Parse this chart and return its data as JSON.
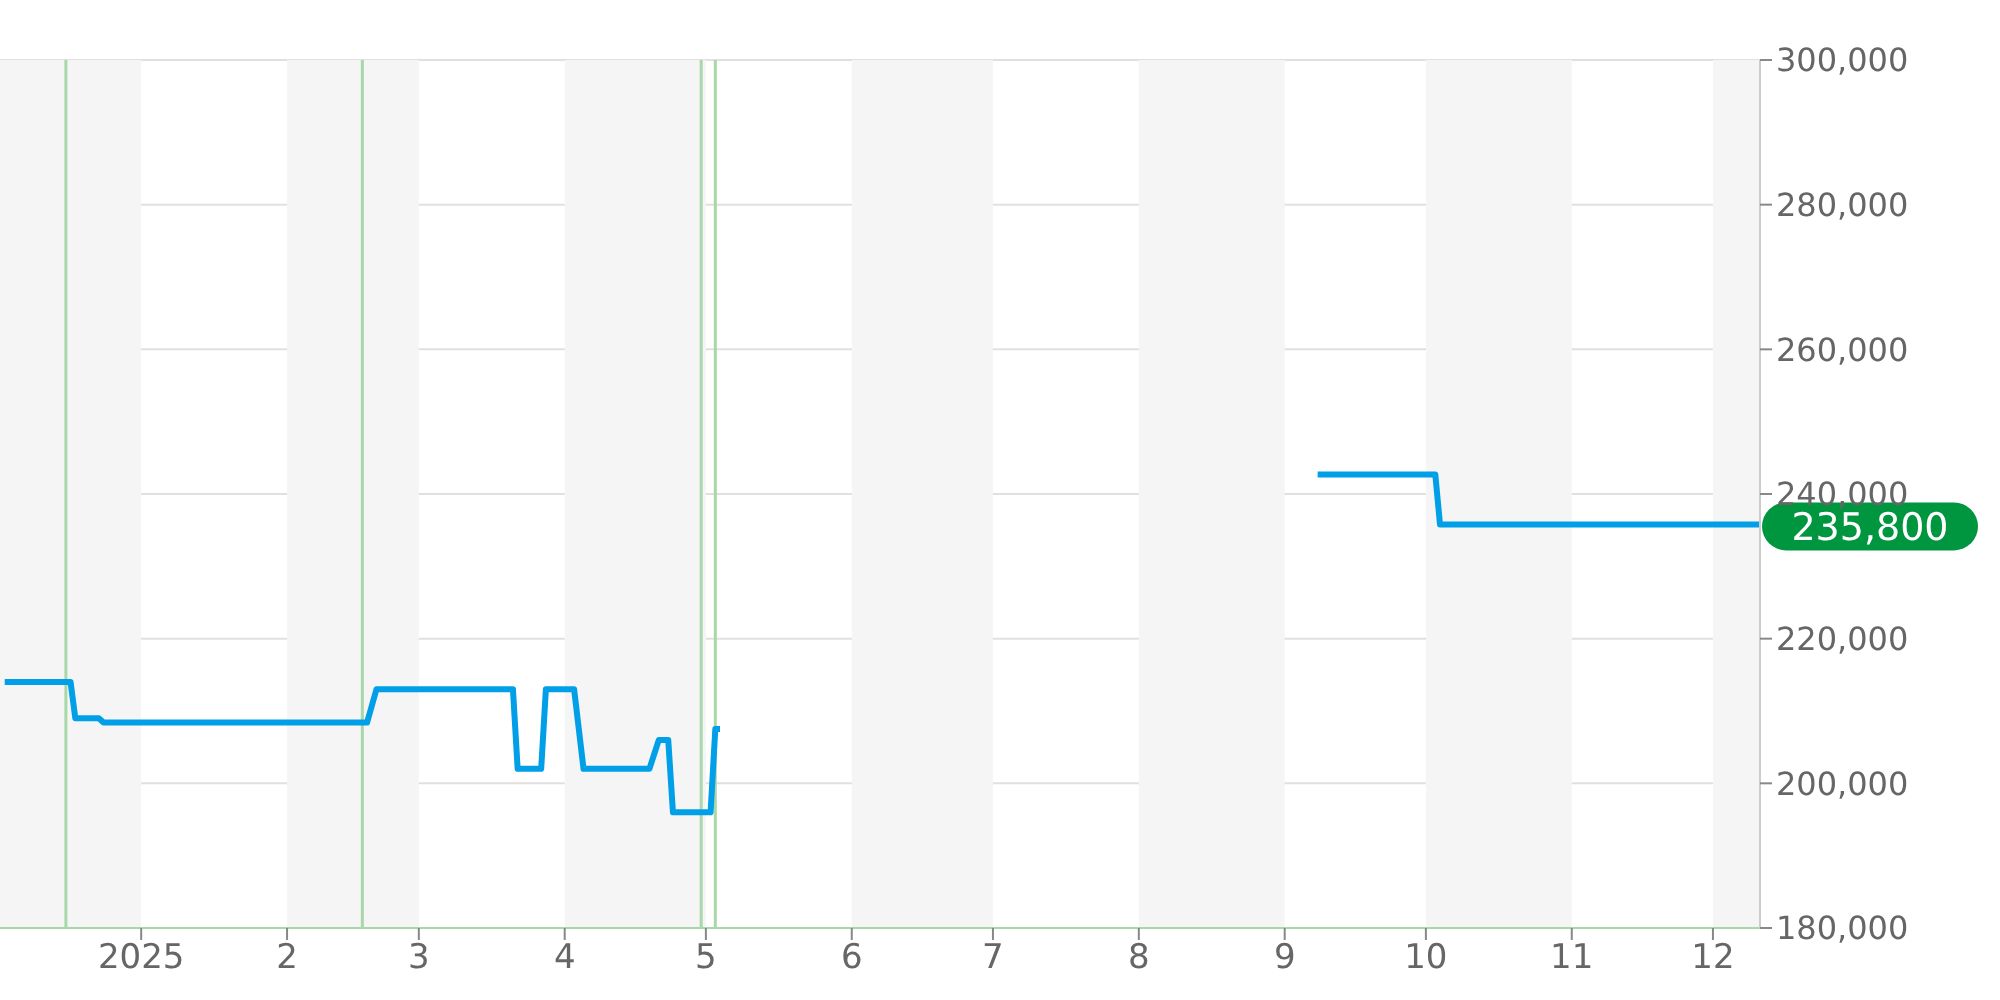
{
  "chart_data": {
    "type": "line",
    "x": [
      "2024-12-03",
      "2024-12-17",
      "2024-12-18",
      "2024-12-23",
      "2024-12-24",
      "2025-02-18",
      "2025-02-20",
      "2025-03-21",
      "2025-03-22",
      "2025-03-27",
      "2025-03-28",
      "2025-04-03",
      "2025-04-05",
      "2025-04-19",
      "2025-04-21",
      "2025-04-23",
      "2025-04-24",
      "2025-05-02",
      "2025-05-03",
      "2025-05-04",
      "2025-07-01",
      "2025-09-08",
      "2025-10-03",
      "2025-10-04",
      "2025-12-11"
    ],
    "series": [
      {
        "color": "#009fe8",
        "values": [
          214000,
          214000,
          209000,
          209000,
          208400,
          208400,
          213000,
          213000,
          202000,
          202000,
          213000,
          213000,
          202000,
          202000,
          206000,
          206000,
          196000,
          196000,
          207500,
          207500,
          null,
          242700,
          242700,
          235800,
          235800
        ]
      }
    ],
    "xlim": [
      "2024-12-02",
      "2025-12-11"
    ],
    "xticks": [
      {
        "value": "2025-01-01",
        "label": "2025"
      },
      {
        "value": "2025-02-01",
        "label": "2"
      },
      {
        "value": "2025-03-01",
        "label": "3"
      },
      {
        "value": "2025-04-01",
        "label": "4"
      },
      {
        "value": "2025-05-01",
        "label": "5"
      },
      {
        "value": "2025-06-01",
        "label": "6"
      },
      {
        "value": "2025-07-01",
        "label": "7"
      },
      {
        "value": "2025-08-01",
        "label": "8"
      },
      {
        "value": "2025-09-01",
        "label": "9"
      },
      {
        "value": "2025-10-01",
        "label": "10"
      },
      {
        "value": "2025-11-01",
        "label": "11"
      },
      {
        "value": "2025-12-01",
        "label": "12"
      }
    ],
    "ylim": [
      180000,
      300000
    ],
    "yticks": [
      {
        "value": 180000,
        "label": "180,000"
      },
      {
        "value": 200000,
        "label": "200,000"
      },
      {
        "value": 220000,
        "label": "220,000"
      },
      {
        "value": 240000,
        "label": "240,000"
      },
      {
        "value": 260000,
        "label": "260,000"
      },
      {
        "value": 280000,
        "label": "280,000"
      },
      {
        "value": 300000,
        "label": "300,000"
      }
    ],
    "grid": "y",
    "legend": false,
    "marker": "none",
    "line_style": "solid",
    "bands": [
      {
        "axis": "x",
        "from": "2024-12-02",
        "to": "2025-01-01",
        "color": "#f5f5f5"
      },
      {
        "axis": "x",
        "from": "2025-02-01",
        "to": "2025-03-01",
        "color": "#f5f5f5"
      },
      {
        "axis": "x",
        "from": "2025-04-01",
        "to": "2025-05-01",
        "color": "#f5f5f5"
      },
      {
        "axis": "x",
        "from": "2025-06-01",
        "to": "2025-07-01",
        "color": "#f5f5f5"
      },
      {
        "axis": "x",
        "from": "2025-08-01",
        "to": "2025-09-01",
        "color": "#f5f5f5"
      },
      {
        "axis": "x",
        "from": "2025-10-01",
        "to": "2025-11-01",
        "color": "#f5f5f5"
      },
      {
        "axis": "x",
        "from": "2025-12-01",
        "to": "2025-12-11",
        "color": "#f5f5f5"
      }
    ],
    "ref_lines": [
      {
        "axis": "x",
        "value": "2024-12-16",
        "color": "#a8d8a8"
      },
      {
        "axis": "x",
        "value": "2025-02-17",
        "color": "#a8d8a8"
      },
      {
        "axis": "x",
        "value": "2025-04-30",
        "color": "#a8d8a8"
      },
      {
        "axis": "x",
        "value": "2025-05-03",
        "color": "#a8d8a8"
      }
    ],
    "annotations": [
      {
        "text": "235,800",
        "x": "2025-12-11",
        "y": 235800
      }
    ]
  }
}
